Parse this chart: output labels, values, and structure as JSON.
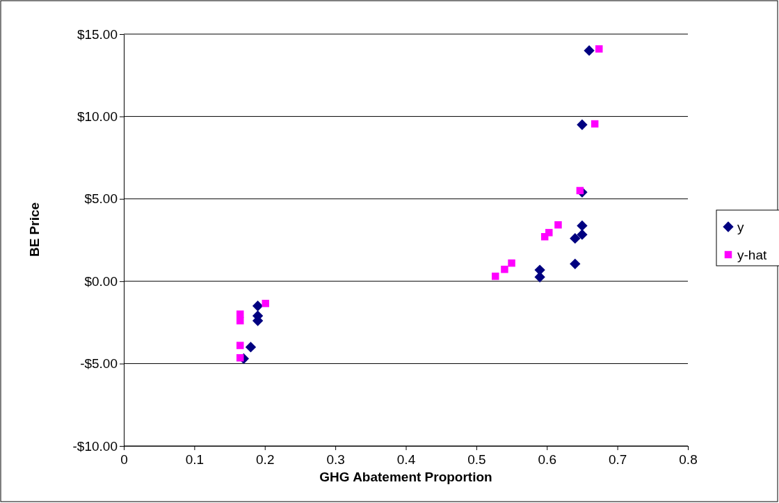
{
  "chart_data": {
    "type": "scatter",
    "xlabel": "GHG Abatement Proportion",
    "ylabel": "BE  Price",
    "xlim": [
      0,
      0.8
    ],
    "xticks": [
      0,
      0.1,
      0.2,
      0.3,
      0.4,
      0.5,
      0.6,
      0.7,
      0.8
    ],
    "ylim": [
      -10,
      15
    ],
    "yticks": [
      {
        "value": -10,
        "label": "-$10.00"
      },
      {
        "value": -5,
        "label": "-$5.00"
      },
      {
        "value": 0,
        "label": "$0.00"
      },
      {
        "value": 5,
        "label": "$5.00"
      },
      {
        "value": 10,
        "label": "$10.00"
      },
      {
        "value": 15,
        "label": "$15.00"
      }
    ],
    "grid": "y",
    "legend": "right",
    "series": [
      {
        "name": "y",
        "color": "#000080",
        "marker": "diamond",
        "x": [
          0.19,
          0.19,
          0.19,
          0.18,
          0.17,
          0.59,
          0.59,
          0.64,
          0.64,
          0.65,
          0.65,
          0.65,
          0.65,
          0.66
        ],
        "values": [
          -1.5,
          -2.1,
          -2.4,
          -4.0,
          -4.7,
          0.68,
          0.25,
          1.05,
          2.6,
          2.83,
          3.37,
          5.4,
          9.5,
          14.0
        ]
      },
      {
        "name": "y-hat",
        "color": "#ff00ff",
        "marker": "square",
        "x": [
          0.201,
          0.165,
          0.165,
          0.165,
          0.165,
          0.527,
          0.54,
          0.55,
          0.597,
          0.603,
          0.616,
          0.647,
          0.668,
          0.674
        ],
        "values": [
          -1.35,
          -2.0,
          -2.4,
          -3.9,
          -4.65,
          0.3,
          0.72,
          1.1,
          2.7,
          2.95,
          3.42,
          5.5,
          9.55,
          14.1
        ]
      }
    ]
  }
}
